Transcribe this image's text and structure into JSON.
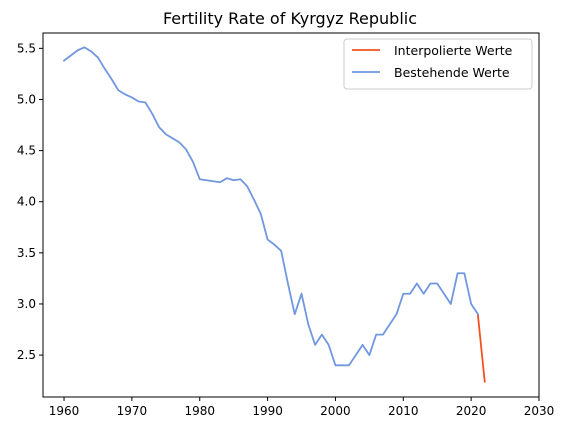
{
  "chart_data": {
    "type": "line",
    "title": "Fertility Rate of Kyrgyz Republic",
    "xlabel": "",
    "ylabel": "",
    "xlim": [
      1956.9,
      2030
    ],
    "ylim": [
      2.09,
      5.65
    ],
    "xticks": [
      1960,
      1970,
      1980,
      1990,
      2000,
      2010,
      2020,
      2030
    ],
    "yticks": [
      2.5,
      3.0,
      3.5,
      4.0,
      4.5,
      5.0,
      5.5
    ],
    "grid": false,
    "legend_position": "top-right",
    "series": [
      {
        "name": "Interpolierte Werte",
        "color": "#f4511e",
        "x": [
          2021,
          2022
        ],
        "y": [
          2.89,
          2.24
        ]
      },
      {
        "name": "Bestehende Werte",
        "color": "#7097e0",
        "x": [
          1960,
          1961,
          1962,
          1963,
          1964,
          1965,
          1966,
          1967,
          1968,
          1969,
          1970,
          1971,
          1972,
          1973,
          1974,
          1975,
          1976,
          1977,
          1978,
          1979,
          1980,
          1981,
          1982,
          1983,
          1984,
          1985,
          1986,
          1987,
          1988,
          1989,
          1990,
          1991,
          1992,
          1993,
          1994,
          1995,
          1996,
          1997,
          1998,
          1999,
          2000,
          2001,
          2002,
          2003,
          2004,
          2005,
          2006,
          2007,
          2008,
          2009,
          2010,
          2011,
          2012,
          2013,
          2014,
          2015,
          2016,
          2017,
          2018,
          2019,
          2020,
          2021
        ],
        "y": [
          5.38,
          5.43,
          5.48,
          5.51,
          5.47,
          5.41,
          5.3,
          5.2,
          5.09,
          5.05,
          5.02,
          4.98,
          4.97,
          4.86,
          4.73,
          4.66,
          4.62,
          4.58,
          4.51,
          4.39,
          4.22,
          4.21,
          4.2,
          4.19,
          4.23,
          4.21,
          4.22,
          4.15,
          4.02,
          3.88,
          3.63,
          3.58,
          3.52,
          3.2,
          2.9,
          3.1,
          2.8,
          2.6,
          2.7,
          2.6,
          2.4,
          2.4,
          2.4,
          2.5,
          2.6,
          2.5,
          2.7,
          2.7,
          2.8,
          2.9,
          3.1,
          3.1,
          3.2,
          3.1,
          3.2,
          3.2,
          3.1,
          3.0,
          3.3,
          3.3,
          3.0,
          2.9
        ]
      }
    ]
  }
}
